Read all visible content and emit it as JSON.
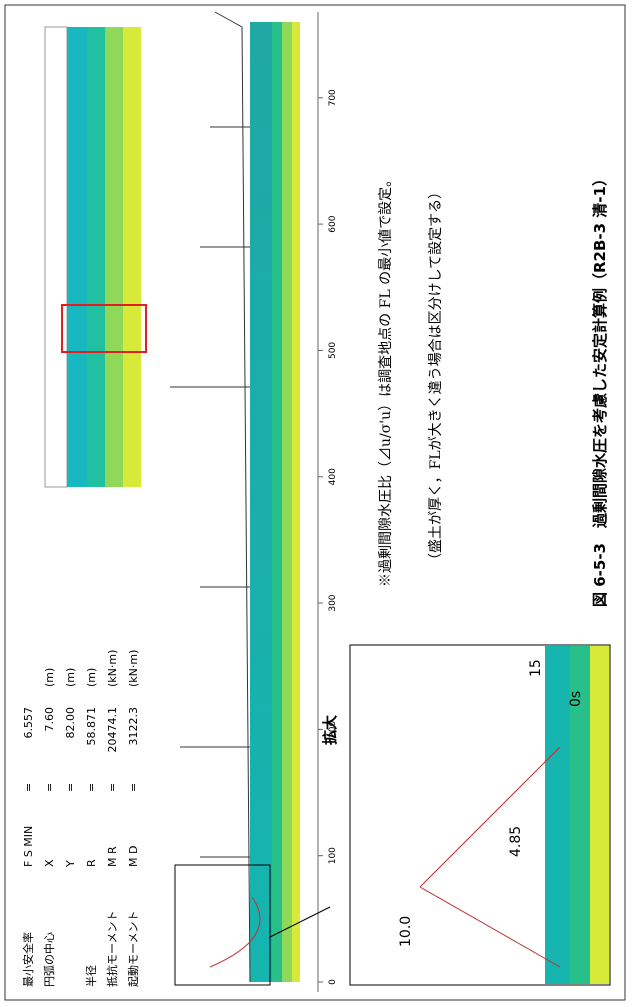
{
  "params": {
    "rows": [
      [
        "最小安全率",
        "F S MIN",
        "=",
        "6.557",
        ""
      ],
      [
        "円弧の中心",
        "X",
        "=",
        "7.60",
        "(m)"
      ],
      [
        "",
        "Y",
        "=",
        "82.00",
        "(m)"
      ],
      [
        "半径",
        "R",
        "=",
        "58.871",
        "(m)"
      ],
      [
        "抵抗モーメント",
        "M R",
        "=",
        "20474.1",
        "(kN·m)"
      ],
      [
        "起動モーメント",
        "M D",
        "=",
        "3122.3",
        "(kN·m)"
      ]
    ]
  },
  "section": {
    "xticks": [
      0,
      100,
      200,
      300,
      400,
      500,
      600,
      700
    ],
    "xlim": [
      0,
      760
    ]
  },
  "zoom": {
    "label": "拡大",
    "texts": [
      "10.0",
      "15",
      "4.85",
      "0s"
    ]
  },
  "notes": [
    "※過剰間隙水圧比（⊿u/σ'u）は調査地点の FL の最小値で設定。",
    "（盛土が厚く，FLが大きく違う場合は区分けして設定する）"
  ],
  "caption": "図 6-5-3　過剰間隙水圧を考慮した安定計算例（R2B-3 清-1）"
}
